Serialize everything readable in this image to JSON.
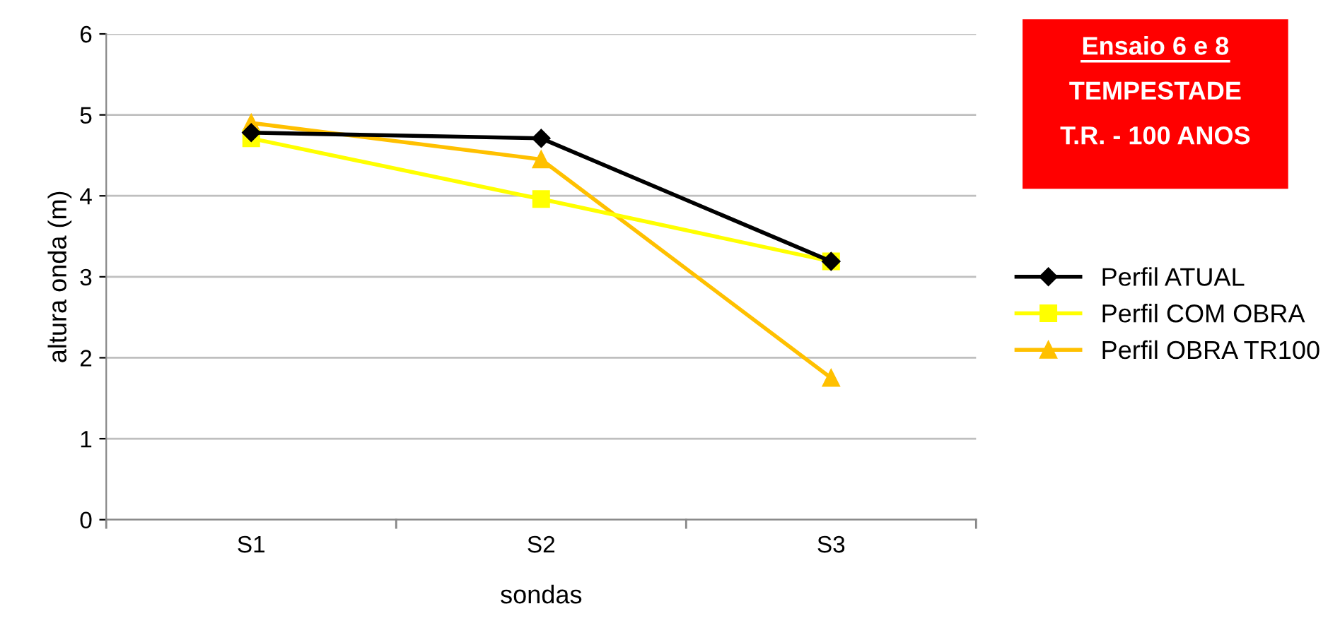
{
  "chart_data": {
    "type": "line",
    "xlabel": "sondas",
    "ylabel": "altura onda (m)",
    "categories": [
      "S1",
      "S2",
      "S3"
    ],
    "series": [
      {
        "name": "Perfil ATUAL",
        "color": "#000000",
        "marker": "diamond",
        "values": [
          4.78,
          4.71,
          3.19
        ]
      },
      {
        "name": "Perfil COM OBRA",
        "color": "#ffff00",
        "marker": "square",
        "values": [
          4.71,
          3.96,
          3.19
        ]
      },
      {
        "name": "Perfil OBRA TR100",
        "color": "#ffc000",
        "marker": "triangle",
        "values": [
          4.9,
          4.45,
          1.75
        ]
      }
    ],
    "ylim": [
      0,
      6
    ],
    "yticks": [
      0,
      1,
      2,
      3,
      4,
      5,
      6
    ],
    "grid": "y",
    "legend": "right",
    "annotations": [
      "Ensaio 6 e 8",
      "TEMPESTADE",
      "T.R. - 100 ANOS"
    ]
  }
}
